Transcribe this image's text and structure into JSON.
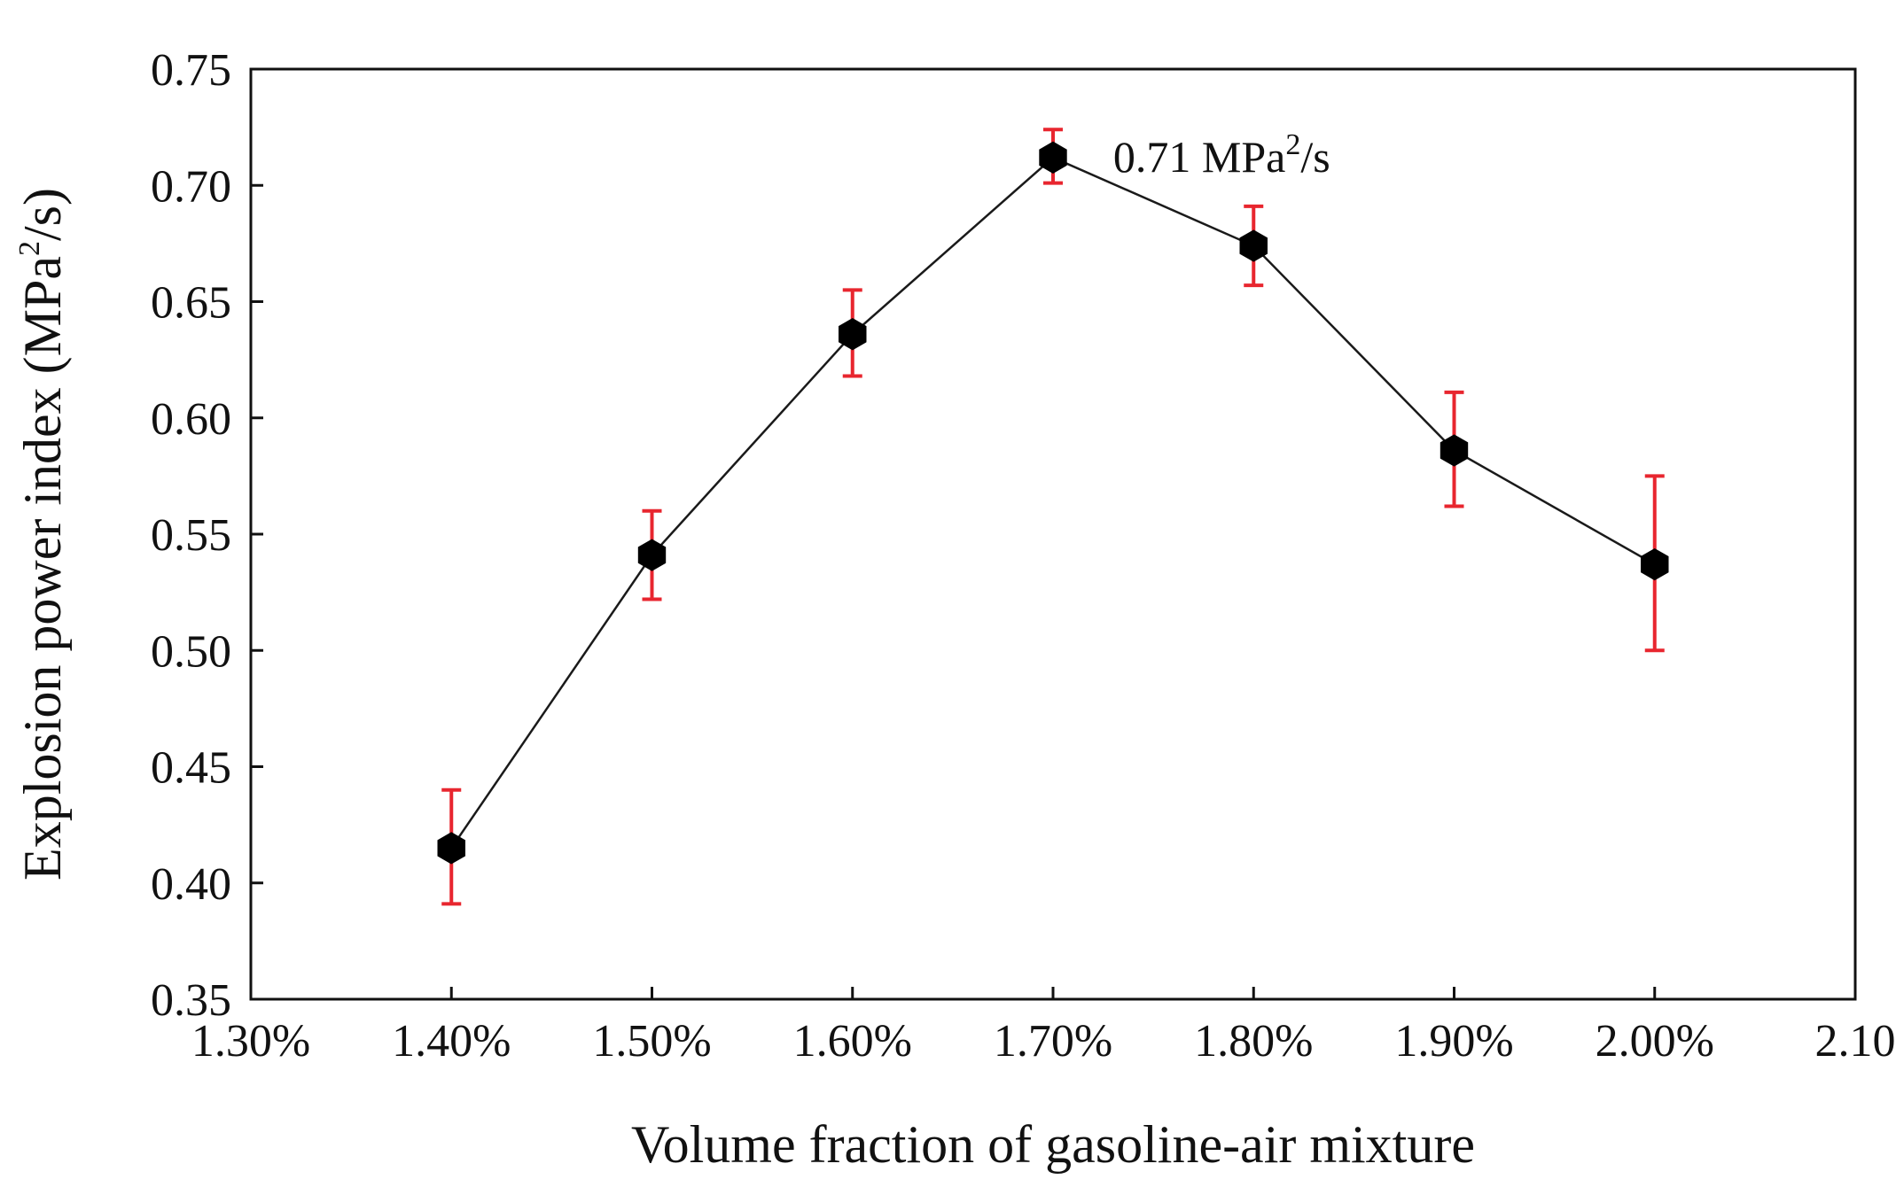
{
  "chart_data": {
    "type": "line",
    "title": "",
    "xlabel": "Volume fraction of gasoline-air mixture",
    "ylabel": {
      "main": "Explosion power index (MPa",
      "superscript": "2",
      "suffix": "/s)"
    },
    "xlim": [
      1.3,
      2.1
    ],
    "ylim": [
      0.35,
      0.75
    ],
    "x_ticks": [
      1.3,
      1.4,
      1.5,
      1.6,
      1.7,
      1.8,
      1.9,
      2.0,
      2.1
    ],
    "x_tick_labels": [
      "1.30%",
      "1.40%",
      "1.50%",
      "1.60%",
      "1.70%",
      "1.80%",
      "1.90%",
      "2.00%",
      "2.10"
    ],
    "y_ticks": [
      0.35,
      0.4,
      0.45,
      0.5,
      0.55,
      0.6,
      0.65,
      0.7,
      0.75
    ],
    "y_tick_labels": [
      "0.35",
      "0.40",
      "0.45",
      "0.50",
      "0.55",
      "0.60",
      "0.65",
      "0.70",
      "0.75"
    ],
    "grid": false,
    "series": [
      {
        "name": "Explosion power index",
        "x": [
          1.4,
          1.5,
          1.6,
          1.7,
          1.8,
          1.9,
          2.0
        ],
        "y": [
          0.415,
          0.541,
          0.636,
          0.712,
          0.674,
          0.586,
          0.537
        ],
        "err_low": [
          0.391,
          0.522,
          0.618,
          0.701,
          0.657,
          0.562,
          0.5
        ],
        "err_high": [
          0.44,
          0.56,
          0.655,
          0.724,
          0.691,
          0.611,
          0.575
        ],
        "marker": "hexagon",
        "marker_color": "#000000",
        "line_color": "#1a1a1a",
        "error_color": "#e8262f"
      }
    ],
    "annotation": {
      "text_main": "0.71 MPa",
      "superscript": "2",
      "suffix": "/s",
      "x": 1.73,
      "y": 0.712
    }
  }
}
